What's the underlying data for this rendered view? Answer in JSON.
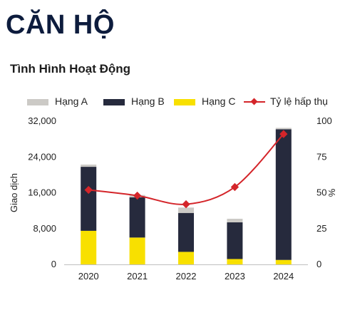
{
  "header": {
    "title": "CĂN HỘ",
    "subtitle": "Tình Hình Hoạt Động"
  },
  "legend": {
    "items": [
      {
        "label": "Hạng A",
        "color": "#cccac6",
        "kind": "bar"
      },
      {
        "label": "Hạng B",
        "color": "#262a3d",
        "kind": "bar"
      },
      {
        "label": "Hạng C",
        "color": "#f8e000",
        "kind": "bar"
      },
      {
        "label": "Tỷ lệ hấp thụ",
        "color": "#d4252a",
        "kind": "line"
      }
    ]
  },
  "chart_data": {
    "type": "bar",
    "stacked": true,
    "categories": [
      "2020",
      "2021",
      "2022",
      "2023",
      "2024"
    ],
    "series": [
      {
        "name": "Hạng C",
        "values": [
          7500,
          6000,
          2800,
          1200,
          1000
        ],
        "color": "#f8e000"
      },
      {
        "name": "Hạng B",
        "values": [
          14300,
          9000,
          8700,
          8200,
          29200
        ],
        "color": "#262a3d"
      },
      {
        "name": "Hạng A",
        "values": [
          500,
          500,
          1200,
          800,
          300
        ],
        "color": "#cccac6"
      }
    ],
    "line_series": {
      "name": "Tỷ lệ hấp thụ",
      "values": [
        52,
        48,
        42,
        54,
        91
      ],
      "color": "#d4252a",
      "axis": "right"
    },
    "ylabel": "Giao dịch",
    "y2label": "%",
    "ylim": [
      0,
      32000
    ],
    "y2lim": [
      0,
      100
    ],
    "yticks": [
      "0",
      "8,000",
      "16,000",
      "24,000",
      "32,000"
    ],
    "y2ticks": [
      "0",
      "25",
      "50",
      "75",
      "100"
    ],
    "legend_position": "top",
    "grid": false
  }
}
